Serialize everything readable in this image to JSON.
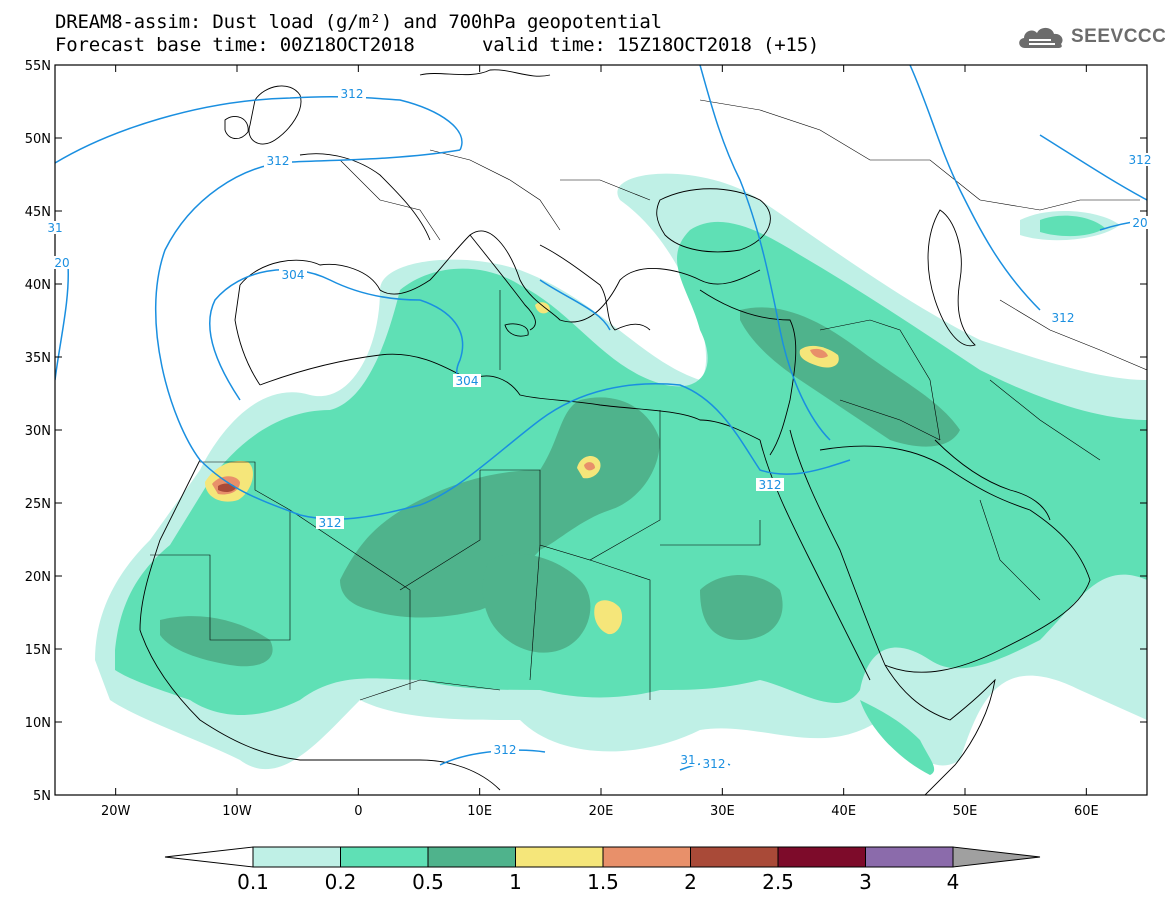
{
  "title": {
    "line1": "DREAM8-assim: Dust load (g/m²) and 700hPa geopotential",
    "line2a": "Forecast base time: 00Z18OCT2018",
    "line2b": "valid time: 15Z18OCT2018 (+15)"
  },
  "logo": {
    "text": "SEEVCCC",
    "icon": "cloud-icon",
    "color": "#6c6c6c"
  },
  "map": {
    "lat_ticks": [
      "55N",
      "50N",
      "45N",
      "40N",
      "35N",
      "30N",
      "25N",
      "20N",
      "15N",
      "10N",
      "5N"
    ],
    "lon_ticks": [
      "20W",
      "10W",
      "0",
      "10E",
      "20E",
      "30E",
      "40E",
      "50E",
      "60E"
    ],
    "extent": {
      "lon": [
        -25,
        65
      ],
      "lat": [
        5,
        55
      ]
    },
    "border_color": "#000000",
    "geopotential_color": "#1a8fe0"
  },
  "contour_labels": [
    "312",
    "312",
    "20",
    "304",
    "304",
    "312",
    "312",
    "312",
    "312",
    "312",
    "31",
    "312",
    "20",
    "31"
  ],
  "colorbar": {
    "labels": [
      "0.1",
      "0.2",
      "0.5",
      "1",
      "1.5",
      "2",
      "2.5",
      "3",
      "4"
    ],
    "colors": [
      "#bff0e6",
      "#5fe0b5",
      "#4fb38c",
      "#f5e67a",
      "#e8906a",
      "#a94a38",
      "#7d0b2a",
      "#8b6bab",
      "#a0a0a0"
    ]
  }
}
